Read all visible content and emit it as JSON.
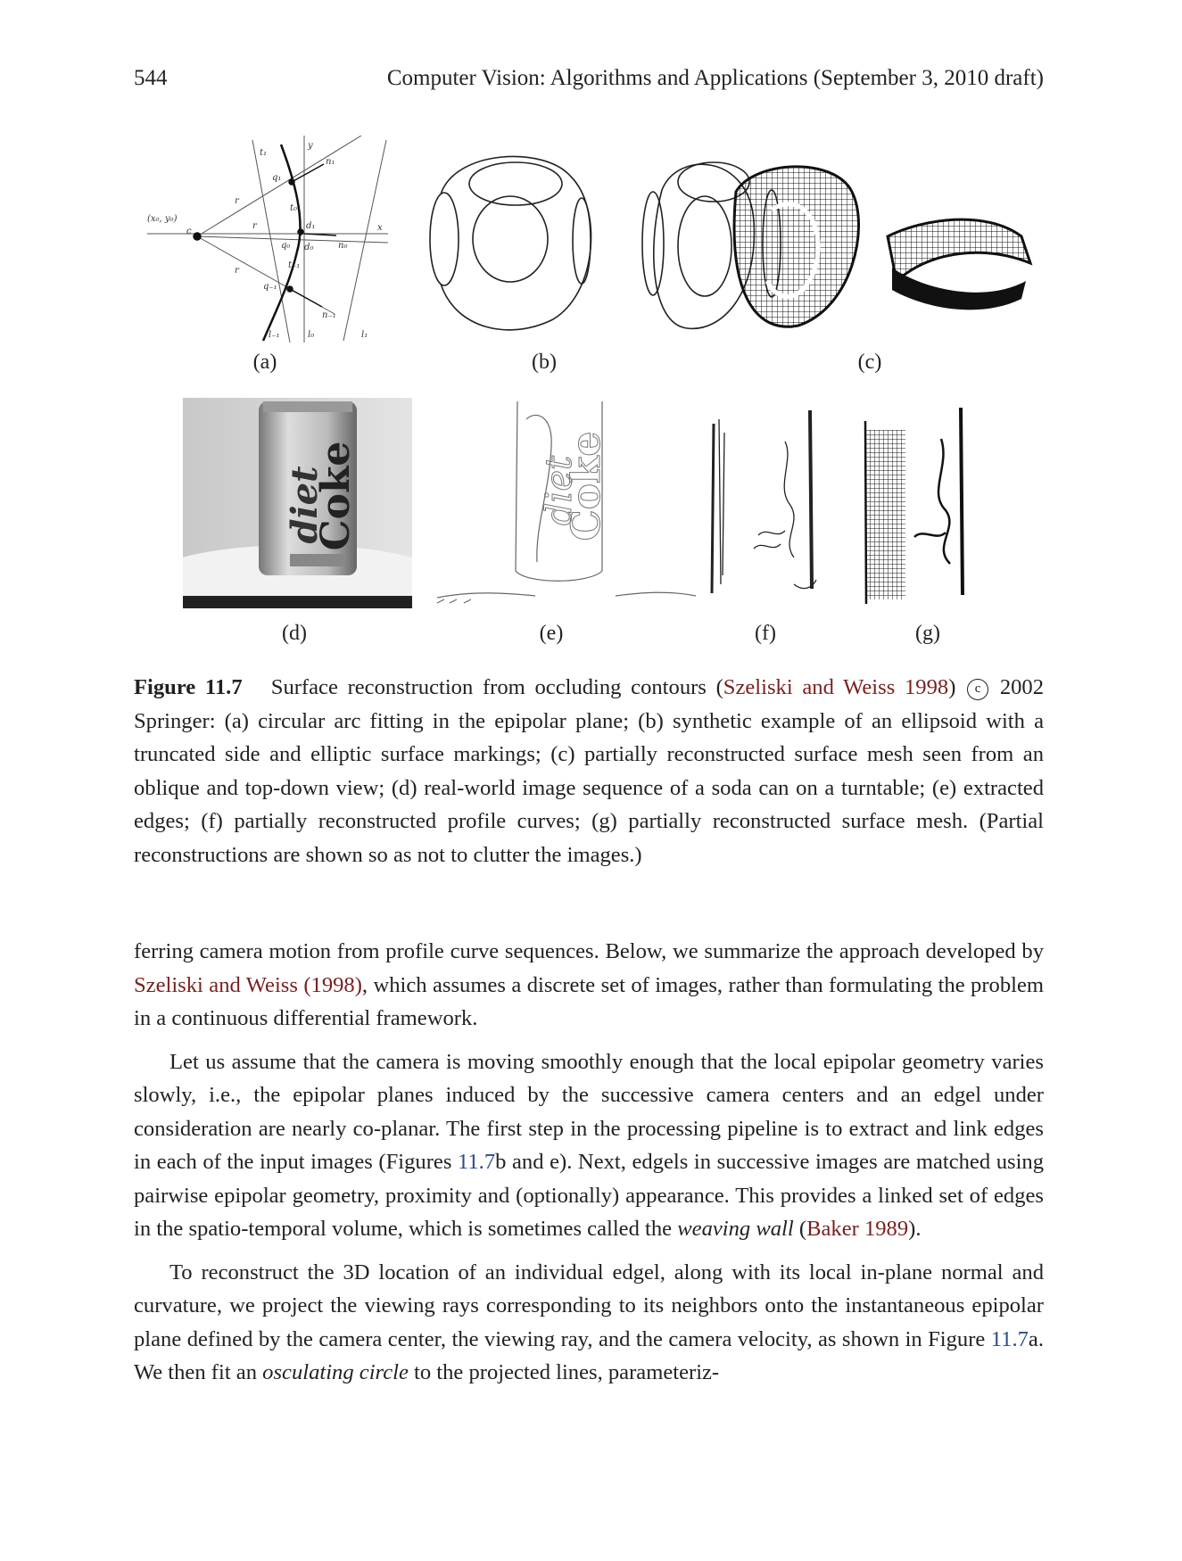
{
  "header": {
    "page_number": "544",
    "running_title": "Computer Vision: Algorithms and Applications (September 3, 2010 draft)"
  },
  "figure": {
    "panel_labels": [
      "(a)",
      "(b)",
      "(c)",
      "(d)",
      "(e)",
      "(f)",
      "(g)"
    ],
    "panel_a_symbols": {
      "y": "y",
      "x": "x",
      "c": "c",
      "c_coords": "(x₀, y₀)",
      "r": "r",
      "q1": "q₁",
      "q0": "q₀",
      "qm1": "q₋₁",
      "t1": "t₁",
      "t0": "t₀",
      "tm1": "t₋₁",
      "n1": "n₁",
      "n0": "n₀",
      "nm1": "n₋₁",
      "l0": "l₀",
      "l1": "l₁",
      "lm1": "l₋₁",
      "d0": "d₀",
      "d1": "d₁"
    },
    "panel_d_can_text": {
      "line1": "diet",
      "line2": "Coke"
    },
    "caption": {
      "label": "Figure 11.7",
      "text_1": "Surface reconstruction from occluding contours (",
      "cite": "Szeliski and Weiss 1998",
      "text_2": ")",
      "copyright_symbol": "c",
      "text_3": "2002 Springer: (a) circular arc fitting in the epipolar plane; (b) synthetic example of an ellipsoid with a truncated side and elliptic surface markings; (c) partially reconstructed surface mesh seen from an oblique and top-down view; (d) real-world image sequence of a soda can on a turntable; (e) extracted edges; (f) partially reconstructed profile curves; (g) partially reconstructed surface mesh. (Partial reconstructions are shown so as not to clutter the images.)"
    }
  },
  "body": {
    "p1": {
      "a": "ferring camera motion from profile curve sequences.  Below, we summarize the approach developed by ",
      "cite": "Szeliski and Weiss (1998)",
      "b": ", which assumes a discrete set of images, rather than formulating the problem in a continuous differential framework."
    },
    "p2": {
      "a": "Let us assume that the camera is moving smoothly enough that the local epipolar geometry varies slowly, i.e., the epipolar planes induced by the successive camera centers and an edgel under consideration are nearly co-planar. The first step in the processing pipeline is to extract and link edges in each of the input images (Figures ",
      "ref": "11.7",
      "b": "b and e).  Next, edgels in successive images are matched using pairwise epipolar geometry, proximity and (optionally) appearance. This provides a linked set of edges in the spatio-temporal volume, which is sometimes called the ",
      "em": "weaving wall",
      "c": " (",
      "cite": "Baker 1989",
      "d": ")."
    },
    "p3": {
      "a": "To reconstruct the 3D location of an individual edgel, along with its local in-plane normal and curvature, we project the viewing rays corresponding to its neighbors onto the instantaneous epipolar plane defined by the camera center, the viewing ray, and the camera velocity, as shown in Figure ",
      "ref": "11.7",
      "b": "a.  We then fit an ",
      "em": "osculating circle",
      "c": " to the projected lines, parameteriz-"
    }
  }
}
